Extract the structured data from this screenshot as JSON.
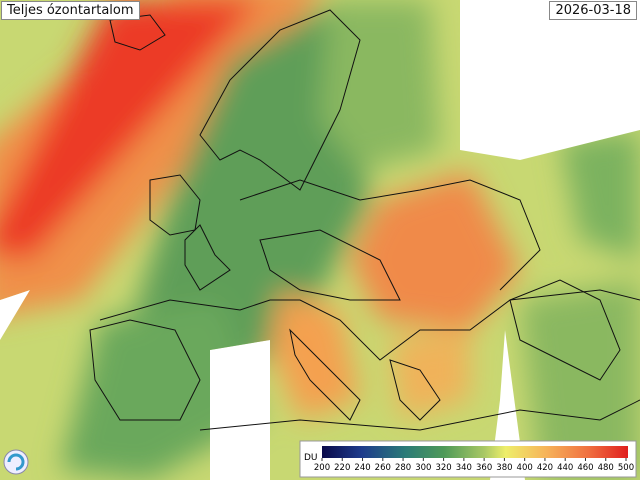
{
  "title": "Teljes ózontartalom",
  "date": "2026-03-18",
  "colorbar": {
    "unit": "DU",
    "ticks": [
      200,
      220,
      240,
      260,
      280,
      300,
      320,
      340,
      360,
      380,
      400,
      420,
      440,
      460,
      480,
      500
    ]
  }
}
